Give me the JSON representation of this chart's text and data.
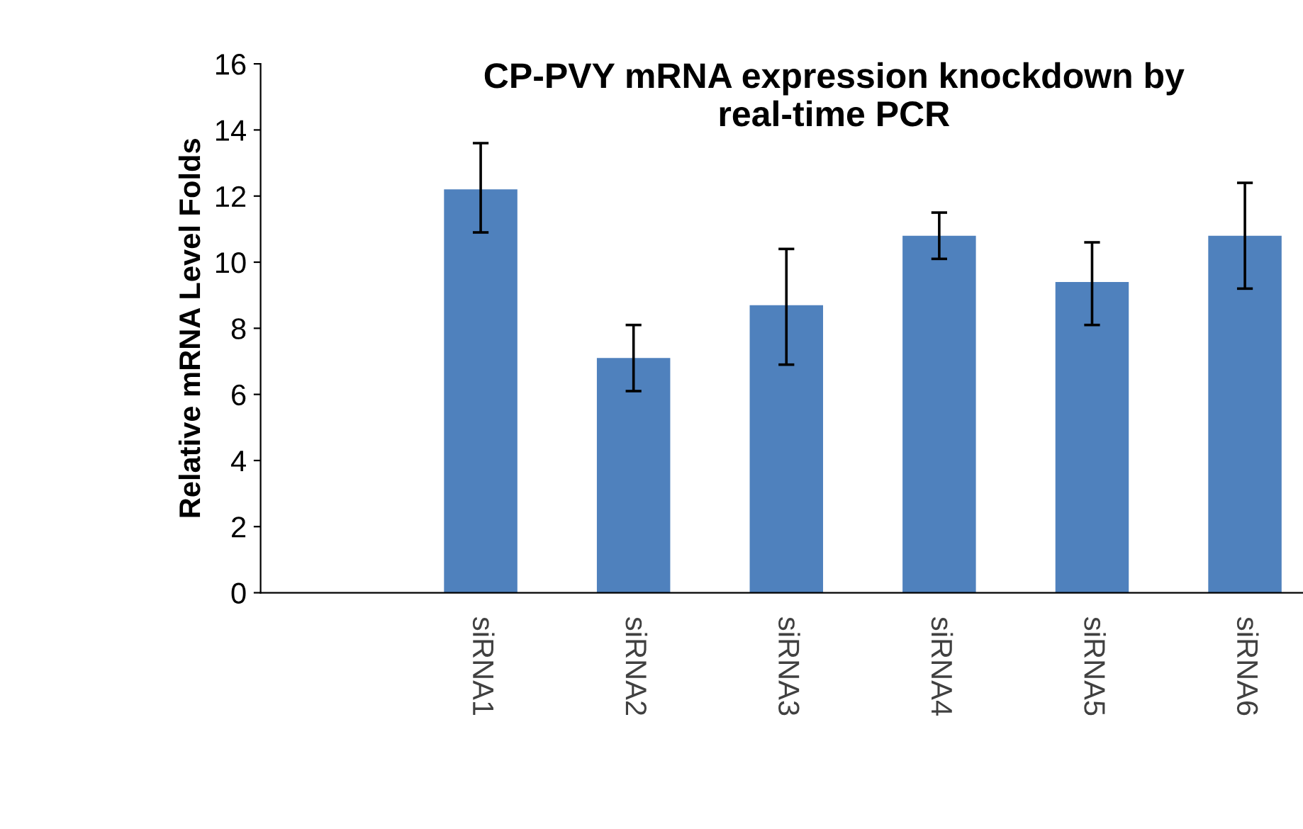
{
  "chart_data": {
    "type": "bar",
    "title": "CP-PVY mRNA expression knockdown by\nreal-time PCR",
    "ylabel": "Relative mRNA Level Folds",
    "categories": [
      null,
      "siRNA1",
      "siRNA2",
      "siRNA3",
      "siRNA4",
      "siRNA5",
      "siRNA6"
    ],
    "values": [
      null,
      12.2,
      7.1,
      8.7,
      10.8,
      9.4,
      10.8
    ],
    "errors": [
      null,
      [
        10.9,
        13.6
      ],
      [
        6.1,
        8.1
      ],
      [
        6.9,
        10.4
      ],
      [
        10.1,
        11.5
      ],
      [
        8.1,
        10.6
      ],
      [
        9.2,
        12.4
      ]
    ],
    "color": "#4f81bd",
    "ylim": [
      0,
      16
    ],
    "yticks": [
      0,
      2,
      4,
      6,
      8,
      10,
      12,
      14,
      16
    ],
    "grid": false,
    "legend": false
  }
}
